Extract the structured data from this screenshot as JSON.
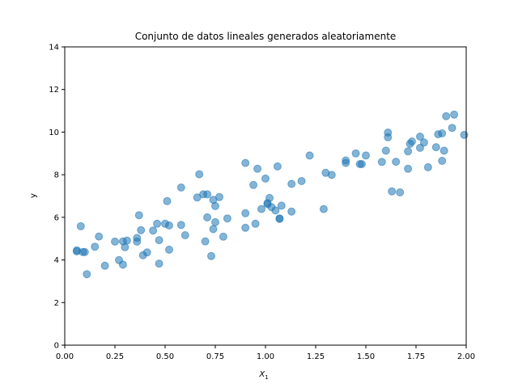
{
  "chart_data": {
    "type": "scatter",
    "title": "Conjunto de datos lineales generados aleatoriamente",
    "xlabel_main": "X",
    "xlabel_sub": "1",
    "ylabel": "y",
    "xlim": [
      0,
      2
    ],
    "ylim": [
      0,
      14
    ],
    "xticks": [
      0.0,
      0.25,
      0.5,
      0.75,
      1.0,
      1.25,
      1.5,
      1.75,
      2.0
    ],
    "xtick_labels": [
      "0.00",
      "0.25",
      "0.50",
      "0.75",
      "1.00",
      "1.25",
      "1.50",
      "1.75",
      "2.00"
    ],
    "yticks": [
      0,
      2,
      4,
      6,
      8,
      10,
      12,
      14
    ],
    "ytick_labels": [
      "0",
      "2",
      "4",
      "6",
      "8",
      "10",
      "12",
      "14"
    ],
    "grid": false,
    "marker_color": "#1f77b4",
    "marker_alpha": 0.55,
    "points": [
      [
        0.06,
        4.45
      ],
      [
        0.06,
        4.4
      ],
      [
        0.08,
        5.58
      ],
      [
        0.09,
        4.37
      ],
      [
        0.1,
        4.37
      ],
      [
        0.11,
        3.33
      ],
      [
        0.15,
        4.62
      ],
      [
        0.17,
        5.1
      ],
      [
        0.2,
        3.73
      ],
      [
        0.25,
        4.86
      ],
      [
        0.27,
        3.99
      ],
      [
        0.29,
        4.87
      ],
      [
        0.29,
        3.78
      ],
      [
        0.3,
        4.6
      ],
      [
        0.31,
        4.91
      ],
      [
        0.36,
        4.86
      ],
      [
        0.36,
        5.03
      ],
      [
        0.37,
        6.1
      ],
      [
        0.38,
        5.4
      ],
      [
        0.39,
        4.22
      ],
      [
        0.41,
        4.35
      ],
      [
        0.44,
        5.38
      ],
      [
        0.46,
        5.7
      ],
      [
        0.47,
        4.93
      ],
      [
        0.47,
        3.83
      ],
      [
        0.5,
        5.7
      ],
      [
        0.51,
        6.76
      ],
      [
        0.52,
        5.62
      ],
      [
        0.52,
        4.48
      ],
      [
        0.58,
        7.4
      ],
      [
        0.58,
        5.64
      ],
      [
        0.6,
        5.16
      ],
      [
        0.66,
        6.93
      ],
      [
        0.67,
        8.02
      ],
      [
        0.69,
        7.08
      ],
      [
        0.7,
        4.87
      ],
      [
        0.71,
        7.08
      ],
      [
        0.71,
        6.0
      ],
      [
        0.73,
        4.18
      ],
      [
        0.74,
        6.82
      ],
      [
        0.74,
        5.45
      ],
      [
        0.75,
        6.53
      ],
      [
        0.75,
        5.77
      ],
      [
        0.77,
        6.95
      ],
      [
        0.79,
        5.09
      ],
      [
        0.81,
        5.95
      ],
      [
        0.9,
        8.55
      ],
      [
        0.9,
        6.19
      ],
      [
        0.9,
        5.51
      ],
      [
        0.94,
        7.52
      ],
      [
        0.95,
        5.7
      ],
      [
        0.96,
        8.28
      ],
      [
        0.98,
        6.39
      ],
      [
        1.0,
        7.82
      ],
      [
        1.01,
        6.67
      ],
      [
        1.01,
        6.62
      ],
      [
        1.02,
        6.91
      ],
      [
        1.03,
        6.48
      ],
      [
        1.05,
        6.32
      ],
      [
        1.06,
        8.39
      ],
      [
        1.07,
        5.95
      ],
      [
        1.07,
        5.93
      ],
      [
        1.08,
        6.55
      ],
      [
        1.13,
        7.57
      ],
      [
        1.13,
        6.27
      ],
      [
        1.18,
        7.7
      ],
      [
        1.22,
        8.9
      ],
      [
        1.29,
        6.39
      ],
      [
        1.3,
        8.09
      ],
      [
        1.33,
        7.99
      ],
      [
        1.4,
        8.55
      ],
      [
        1.4,
        8.67
      ],
      [
        1.45,
        9.0
      ],
      [
        1.47,
        8.5
      ],
      [
        1.48,
        8.5
      ],
      [
        1.5,
        8.9
      ],
      [
        1.58,
        8.6
      ],
      [
        1.6,
        9.13
      ],
      [
        1.61,
        9.76
      ],
      [
        1.61,
        9.98
      ],
      [
        1.63,
        7.22
      ],
      [
        1.65,
        8.61
      ],
      [
        1.67,
        7.17
      ],
      [
        1.71,
        9.1
      ],
      [
        1.71,
        8.28
      ],
      [
        1.72,
        9.45
      ],
      [
        1.73,
        9.56
      ],
      [
        1.77,
        9.26
      ],
      [
        1.77,
        9.79
      ],
      [
        1.79,
        9.51
      ],
      [
        1.81,
        8.35
      ],
      [
        1.85,
        9.29
      ],
      [
        1.86,
        9.9
      ],
      [
        1.88,
        9.94
      ],
      [
        1.88,
        8.65
      ],
      [
        1.89,
        9.13
      ],
      [
        1.9,
        10.75
      ],
      [
        1.93,
        10.2
      ],
      [
        1.94,
        10.82
      ],
      [
        1.99,
        9.87
      ]
    ]
  }
}
